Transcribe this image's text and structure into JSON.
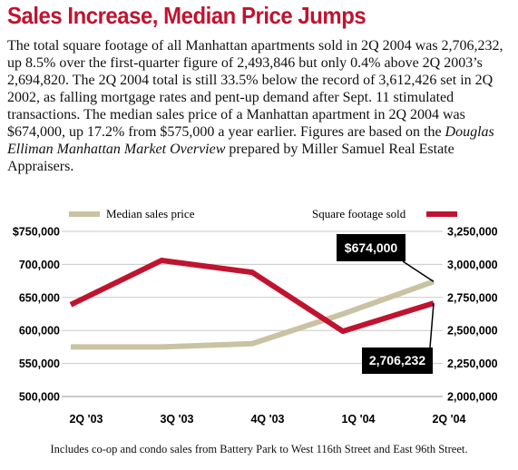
{
  "headline": "Sales Increase, Median Price Jumps",
  "body": {
    "pre": "The total square footage of all Manhattan apartments sold in 2Q 2004 was 2,706,232, up 8.5% over the first-quarter figure of 2,493,846 but only 0.4% above 2Q 2003’s 2,694,820. The 2Q 2004 total is still 33.5% below the record of 3,612,426 set in 2Q 2002, as falling mortgage rates and pent-up demand after Sept. 11 stimulated transactions. The median sales price of a Manhattan apartment in 2Q 2004 was $674,000, up 17.2% from $575,000 a year earlier. Figures are based on the ",
    "source_italic": "Douglas Elliman Manhattan Market Overview",
    "post": " prepared by Miller Samuel Real Estate Appraisers."
  },
  "colors": {
    "headline": "#c0132f",
    "price_line": "#c9c3a3",
    "sqft_line": "#c0132f",
    "callout_bg": "#000000"
  },
  "chart_data": {
    "type": "line",
    "categories": [
      "2Q '03",
      "3Q '03",
      "4Q '03",
      "1Q '04",
      "2Q '04"
    ],
    "series": [
      {
        "name": "Median sales price",
        "axis": "left",
        "values": [
          575000,
          575000,
          580000,
          625000,
          674000
        ]
      },
      {
        "name": "Square footage sold",
        "axis": "right",
        "values": [
          2694820,
          3030000,
          2940000,
          2493846,
          2706232
        ]
      }
    ],
    "y_left": {
      "ylim": [
        500000,
        750000
      ],
      "ticks": [
        750000,
        700000,
        650000,
        600000,
        550000,
        500000
      ],
      "tick_labels": [
        "$750,000",
        "700,000",
        "650,000",
        "600,000",
        "550,000",
        "500,000"
      ]
    },
    "y_right": {
      "ylim": [
        2000000,
        3250000
      ],
      "ticks": [
        3250000,
        3000000,
        2750000,
        2500000,
        2250000,
        2000000
      ],
      "tick_labels": [
        "3,250,000",
        "3,000,000",
        "2,750,000",
        "2,500,000",
        "2,250,000",
        "2,000,000"
      ]
    },
    "legend": [
      "Median sales price",
      "Square footage sold"
    ],
    "annotations": [
      {
        "text": "$674,000",
        "series": "Median sales price",
        "category": "2Q '04"
      },
      {
        "text": "2,706,232",
        "series": "Square footage sold",
        "category": "2Q '04"
      }
    ]
  },
  "footnote": "Includes co-op and condo sales from Battery Park to West 116th Street and East 96th Street."
}
